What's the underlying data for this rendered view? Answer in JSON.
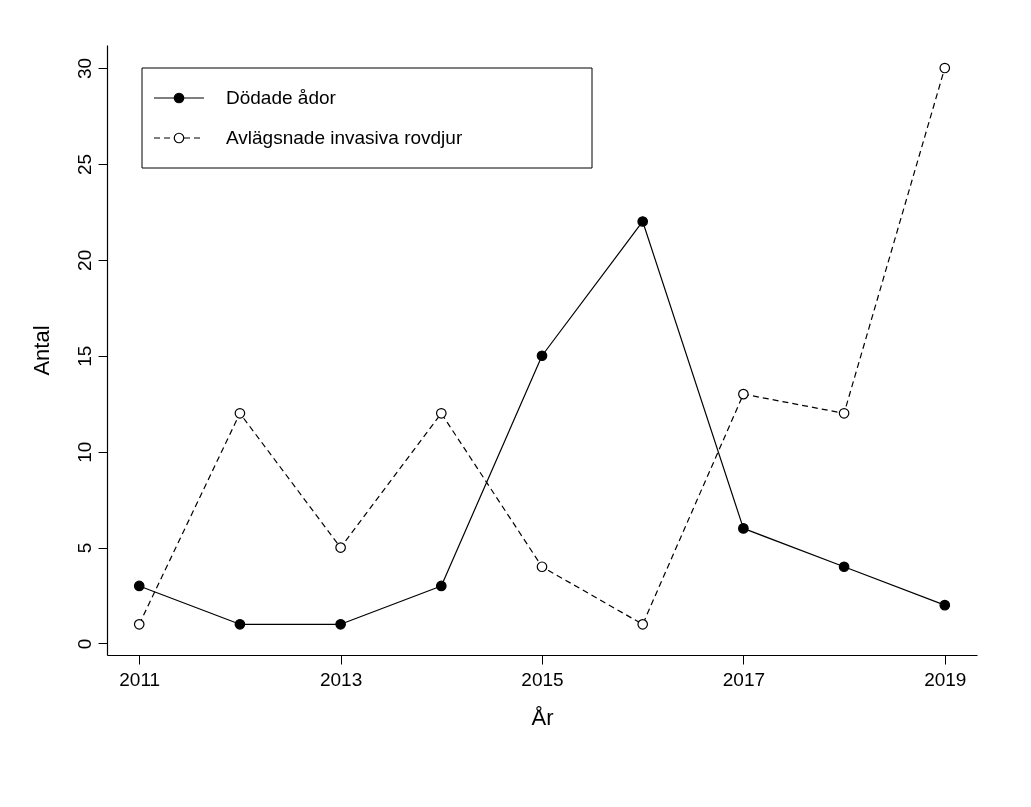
{
  "chart_data": {
    "type": "line",
    "xlabel": "År",
    "ylabel": "Antal",
    "x": [
      2011,
      2012,
      2013,
      2014,
      2015,
      2016,
      2017,
      2018,
      2019
    ],
    "series": [
      {
        "name": "Dödade ådor",
        "color": "#000000",
        "line_style": "solid",
        "values": [
          3,
          1,
          1,
          3,
          15,
          22,
          6,
          4,
          2
        ]
      },
      {
        "name": "Avlägsnade invasiva rovdjur",
        "color": "#000000",
        "line_style": "dashed",
        "values": [
          1,
          12,
          5,
          12,
          4,
          1,
          13,
          12,
          30
        ]
      }
    ],
    "xlim": [
      2010.68,
      2019.32
    ],
    "xticks": [
      2011,
      2013,
      2015,
      2017,
      2019
    ],
    "ylim": [
      -0.6,
      31.2
    ],
    "yticks": [
      0,
      5,
      10,
      15,
      20,
      25,
      30
    ],
    "grid": false,
    "legend": "top left",
    "marker": "circle"
  }
}
